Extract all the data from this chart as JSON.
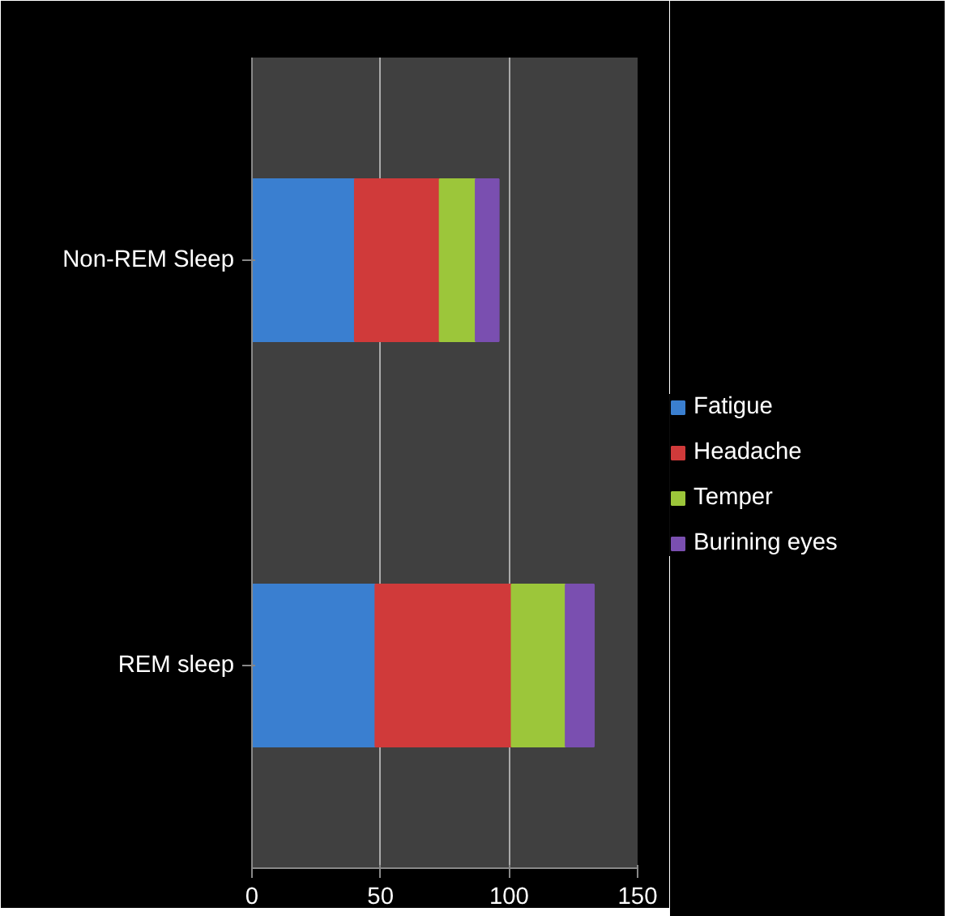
{
  "chart_data": {
    "type": "bar",
    "orientation": "horizontal",
    "stacked": true,
    "categories": [
      "Non-REM Sleep",
      "REM sleep"
    ],
    "series": [
      {
        "name": "Fatigue",
        "color": "#3a7fd0",
        "values": [
          40,
          48
        ]
      },
      {
        "name": "Headache",
        "color": "#d03a3a",
        "values": [
          33,
          53
        ]
      },
      {
        "name": "Temper",
        "color": "#9cc63a",
        "values": [
          14,
          21
        ]
      },
      {
        "name": "Burining eyes",
        "color": "#7a4fb0",
        "values": [
          9,
          11
        ]
      }
    ],
    "xlim": [
      0,
      150
    ],
    "xticks": [
      0,
      50,
      100,
      150
    ],
    "grid": "x",
    "legend": "right"
  }
}
